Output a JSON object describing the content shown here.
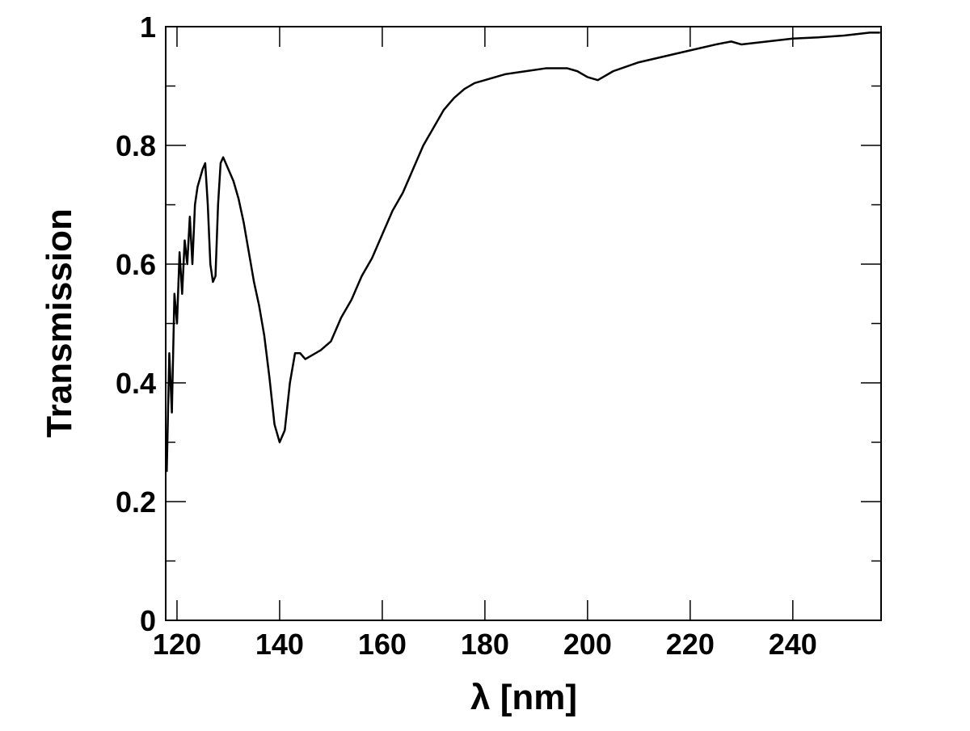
{
  "chart_data": {
    "type": "line",
    "x_label": "λ [nm]",
    "y_label": "Transmission",
    "xlim": [
      117.8,
      257.2
    ],
    "ylim": [
      0,
      1
    ],
    "xticks": [
      120,
      140,
      160,
      180,
      200,
      220,
      240
    ],
    "yticks": [
      0,
      0.2,
      0.4,
      0.6,
      0.8,
      1
    ],
    "series": [
      {
        "color": "#000000",
        "x": [
          118,
          118.5,
          119,
          119.5,
          120,
          120.5,
          121,
          121.5,
          122,
          122.5,
          123,
          123.5,
          124,
          125,
          125.5,
          126,
          126.5,
          127,
          127.5,
          128,
          128.5,
          129,
          130,
          131,
          132,
          133,
          134,
          135,
          136,
          137,
          138,
          139,
          140,
          141,
          142,
          143,
          144,
          145,
          146,
          148,
          150,
          152,
          154,
          156,
          158,
          160,
          162,
          164,
          166,
          168,
          170,
          172,
          174,
          176,
          178,
          180,
          184,
          188,
          192,
          196,
          198,
          200,
          202,
          205,
          210,
          215,
          220,
          225,
          228,
          230,
          235,
          240,
          245,
          250,
          255,
          257
        ],
        "values": [
          0.25,
          0.45,
          0.35,
          0.55,
          0.5,
          0.62,
          0.55,
          0.64,
          0.6,
          0.68,
          0.6,
          0.7,
          0.73,
          0.76,
          0.77,
          0.7,
          0.6,
          0.57,
          0.58,
          0.7,
          0.77,
          0.78,
          0.76,
          0.74,
          0.71,
          0.67,
          0.62,
          0.57,
          0.53,
          0.48,
          0.41,
          0.33,
          0.3,
          0.32,
          0.4,
          0.45,
          0.45,
          0.44,
          0.445,
          0.455,
          0.47,
          0.51,
          0.54,
          0.58,
          0.61,
          0.65,
          0.69,
          0.72,
          0.76,
          0.8,
          0.83,
          0.86,
          0.88,
          0.895,
          0.905,
          0.91,
          0.92,
          0.925,
          0.93,
          0.93,
          0.925,
          0.915,
          0.91,
          0.925,
          0.94,
          0.95,
          0.96,
          0.97,
          0.975,
          0.97,
          0.975,
          0.98,
          0.982,
          0.985,
          0.99,
          0.99
        ]
      }
    ]
  }
}
